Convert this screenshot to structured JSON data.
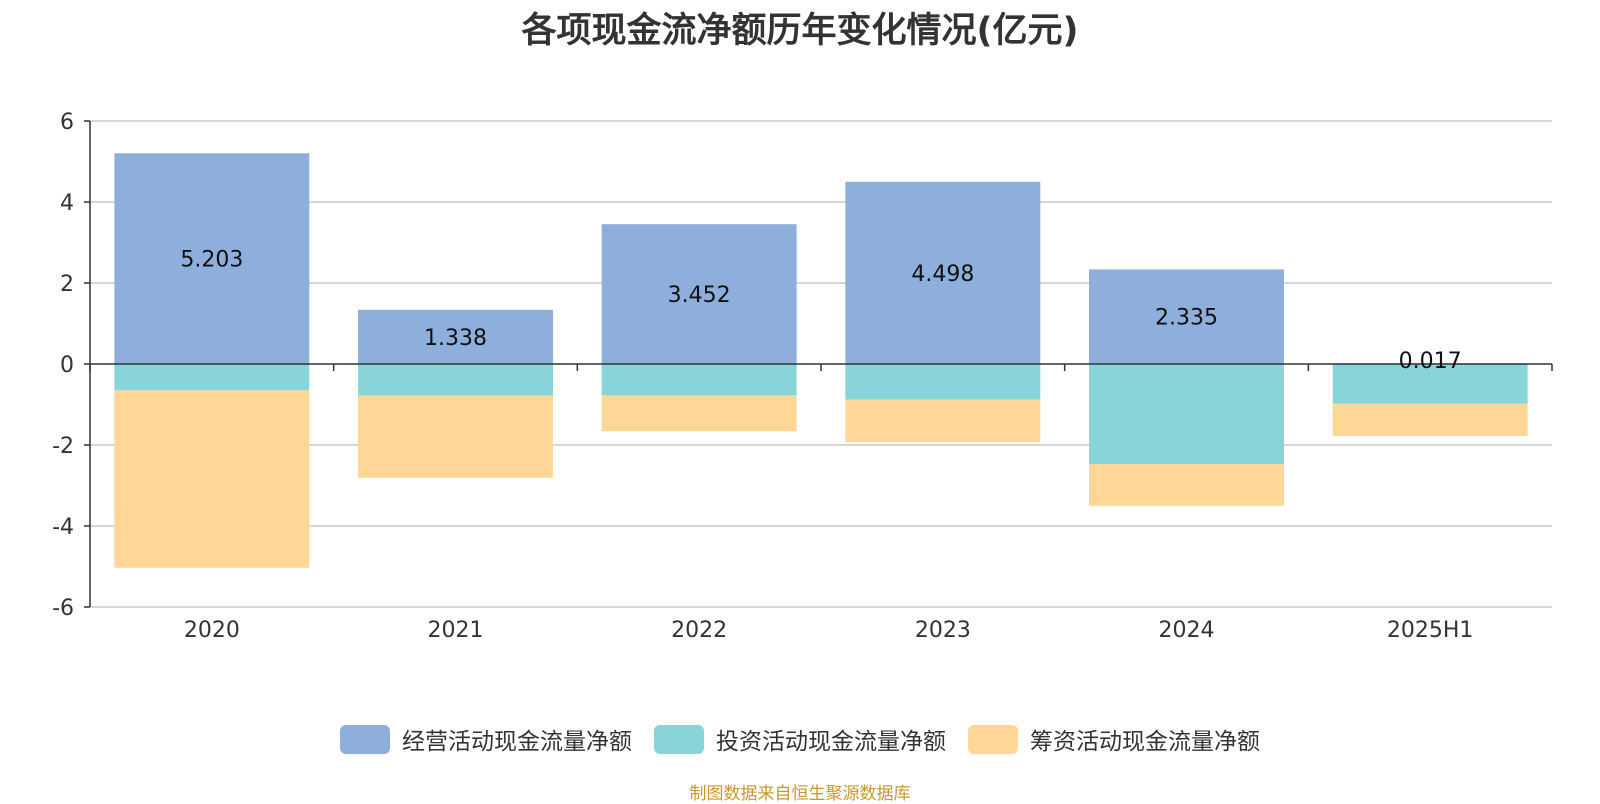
{
  "chart_data": {
    "type": "bar",
    "stacked": true,
    "title": "各项现金流净额历年变化情况(亿元)",
    "categories": [
      "2020",
      "2021",
      "2022",
      "2023",
      "2024",
      "2025H1"
    ],
    "series": [
      {
        "name": "经营活动现金流量净额",
        "values": [
          5.203,
          1.338,
          3.452,
          4.498,
          2.335,
          0.017
        ],
        "color": "#8eaedb",
        "labels": [
          "5.203",
          "1.338",
          "3.452",
          "4.498",
          "2.335",
          "0.017"
        ]
      },
      {
        "name": "投资活动现金流量净额",
        "values": [
          -0.65,
          -0.78,
          -0.78,
          -0.88,
          -2.47,
          -0.98
        ],
        "color": "#87d5d9"
      },
      {
        "name": "筹资活动现金流量净额",
        "values": [
          -4.38,
          -2.03,
          -0.88,
          -1.05,
          -1.03,
          -0.8
        ],
        "color": "#fed797"
      }
    ],
    "yticks": [
      "6",
      "4",
      "2",
      "0",
      "-2",
      "-4",
      "-6"
    ],
    "ylim": [
      -6,
      6
    ],
    "grid": true,
    "legend_position": "bottom"
  },
  "footer": {
    "source": "制图数据来自恒生聚源数据库"
  }
}
